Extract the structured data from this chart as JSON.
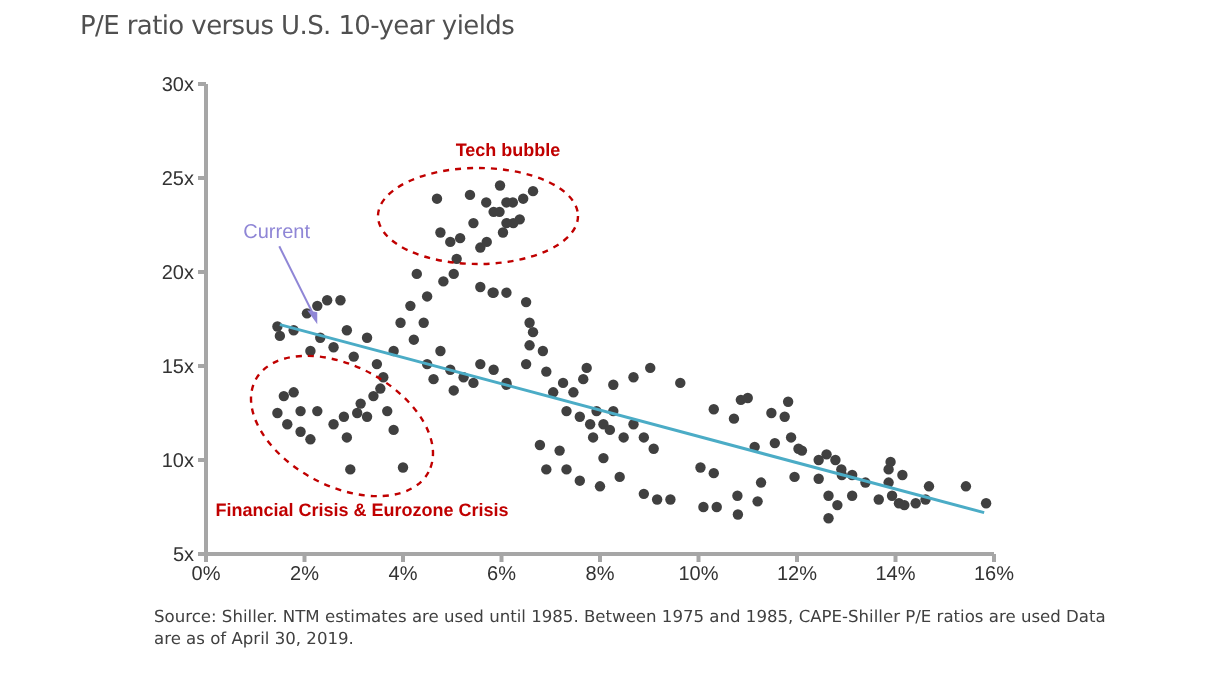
{
  "chart_data": {
    "type": "scatter",
    "title": "P/E ratio versus U.S. 10-year yields",
    "xlim": [
      0,
      16
    ],
    "ylim": [
      5,
      30
    ],
    "xticks": [
      {
        "value": 0,
        "label": "0%"
      },
      {
        "value": 2,
        "label": "2%"
      },
      {
        "value": 4,
        "label": "4%"
      },
      {
        "value": 6,
        "label": "6%"
      },
      {
        "value": 8,
        "label": "8%"
      },
      {
        "value": 10,
        "label": "10%"
      },
      {
        "value": 12,
        "label": "12%"
      },
      {
        "value": 14,
        "label": "14%"
      },
      {
        "value": 16,
        "label": "16%"
      }
    ],
    "yticks": [
      {
        "value": 5,
        "label": "5x"
      },
      {
        "value": 10,
        "label": "10x"
      },
      {
        "value": 15,
        "label": "15x"
      },
      {
        "value": 20,
        "label": "20x"
      },
      {
        "value": 25,
        "label": "25x"
      },
      {
        "value": 30,
        "label": "30x"
      }
    ],
    "grid": false,
    "legend": false,
    "marker": "circle",
    "series": [
      {
        "color": "#404040",
        "x": [
          1.45,
          1.58,
          1.78,
          1.65,
          1.92,
          1.92,
          2.12,
          2.26,
          2.59,
          2.8,
          2.86,
          2.93,
          3.14,
          3.27,
          3.4,
          3.54,
          3.81,
          4.0,
          3.68,
          3.07,
          1.45,
          1.5,
          1.78,
          2.05,
          2.26,
          2.46,
          2.73,
          2.12,
          2.32,
          2.59,
          2.86,
          3.0,
          3.27,
          3.47,
          3.6,
          3.81,
          3.95,
          4.15,
          4.22,
          4.42,
          4.49,
          4.62,
          4.76,
          4.96,
          5.03,
          5.23,
          5.43,
          5.57,
          5.84,
          6.1,
          4.28,
          4.49,
          4.82,
          4.69,
          4.76,
          4.96,
          5.09,
          5.16,
          5.36,
          5.43,
          5.57,
          5.7,
          5.84,
          5.97,
          6.1,
          6.24,
          5.57,
          5.84,
          5.03,
          5.69,
          5.96,
          6.23,
          6.44,
          6.64,
          6.1,
          6.37,
          6.03,
          5.82,
          6.1,
          6.5,
          6.57,
          6.64,
          6.57,
          6.84,
          6.5,
          6.91,
          6.1,
          7.05,
          7.25,
          7.46,
          7.66,
          7.32,
          7.59,
          7.8,
          7.93,
          8.07,
          8.2,
          8.27,
          8.48,
          8.68,
          8.89,
          9.09,
          7.86,
          8.07,
          7.18,
          7.32,
          7.59,
          8.0,
          8.4,
          8.89,
          9.16,
          9.43,
          6.78,
          6.91,
          8.68,
          9.02,
          9.63,
          8.27,
          7.73,
          10.04,
          10.31,
          10.31,
          10.72,
          10.86,
          10.79,
          11.0,
          11.14,
          11.27,
          11.55,
          11.48,
          11.75,
          11.82,
          11.88,
          11.95,
          12.1,
          10.1,
          10.37,
          10.8,
          11.2,
          12.6,
          12.9,
          12.82,
          12.03,
          12.44,
          12.78,
          12.44,
          12.91,
          13.12,
          12.64,
          13.12,
          12.64,
          13.39,
          13.66,
          13.86,
          13.9,
          13.86,
          13.93,
          14.07,
          14.14,
          14.18,
          14.41,
          14.61,
          14.68,
          15.43,
          15.84
        ],
        "values": [
          12.5,
          13.4,
          13.6,
          11.9,
          12.6,
          11.5,
          11.1,
          12.6,
          11.9,
          12.3,
          11.2,
          9.5,
          13.0,
          12.3,
          13.4,
          13.8,
          11.6,
          9.6,
          12.6,
          12.5,
          17.1,
          16.6,
          16.9,
          17.8,
          18.2,
          18.5,
          18.5,
          15.8,
          16.5,
          16.0,
          16.9,
          15.5,
          16.5,
          15.1,
          14.4,
          15.8,
          17.3,
          18.2,
          16.4,
          17.3,
          15.1,
          14.3,
          15.8,
          14.8,
          13.7,
          14.4,
          14.1,
          15.1,
          14.8,
          14.1,
          19.9,
          18.7,
          19.5,
          23.9,
          22.1,
          21.6,
          20.7,
          21.8,
          24.1,
          22.6,
          21.3,
          21.6,
          23.2,
          24.6,
          23.7,
          22.6,
          19.2,
          18.9,
          19.9,
          23.7,
          23.2,
          23.7,
          23.9,
          24.3,
          22.6,
          22.8,
          22.1,
          18.9,
          18.9,
          18.4,
          17.3,
          16.8,
          16.1,
          15.8,
          15.1,
          14.7,
          14.0,
          13.6,
          14.1,
          13.6,
          14.3,
          12.6,
          12.3,
          11.9,
          12.6,
          11.9,
          11.6,
          12.6,
          11.2,
          11.9,
          11.2,
          10.6,
          11.2,
          10.1,
          10.5,
          9.5,
          8.9,
          8.6,
          9.1,
          8.2,
          7.9,
          7.9,
          10.8,
          9.5,
          14.4,
          14.9,
          14.1,
          14.0,
          14.9,
          9.6,
          12.7,
          9.3,
          12.2,
          13.2,
          8.1,
          13.3,
          10.7,
          8.8,
          10.9,
          12.5,
          12.3,
          13.1,
          11.2,
          9.1,
          10.5,
          7.5,
          7.5,
          7.1,
          7.8,
          10.3,
          9.5,
          7.6,
          10.6,
          10.0,
          10.0,
          9.0,
          9.2,
          9.2,
          8.1,
          8.1,
          6.9,
          8.8,
          7.9,
          9.5,
          9.9,
          8.8,
          8.1,
          7.7,
          9.2,
          7.6,
          7.7,
          7.9,
          8.6,
          8.6,
          7.7
        ]
      },
      {
        "type": "line",
        "marker": "none",
        "color": "#4bacc6",
        "x": [
          1.5,
          15.8
        ],
        "values": [
          17.2,
          7.2
        ]
      }
    ],
    "annotations": [
      {
        "text": "Current",
        "x": 2.3,
        "y": 16.9
      },
      "Tech bubble",
      "Financial Crisis & Eurozone Crisis",
      "Source: Shiller. NTM estimates are used until 1985. Between 1975 and 1985, CAPE-Shiller P/E ratios are used Data are as of April 30, 2019."
    ]
  }
}
